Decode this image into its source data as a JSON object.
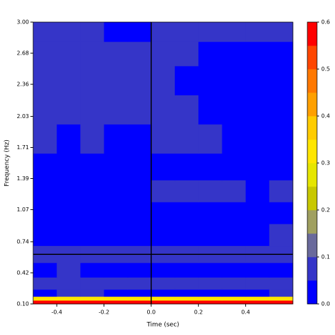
{
  "chart_data": {
    "type": "heatmap",
    "x_label": "Time (sec)",
    "y_label": "Frequency (Hz)",
    "xlim": [
      -0.5,
      0.6
    ],
    "ylim": [
      0.1,
      3.0
    ],
    "xticks": [
      -0.4,
      -0.2,
      {
        "value": 0,
        "label": "0.0"
      },
      0.2,
      0.4
    ],
    "yticks": [
      {
        "value": 0.1,
        "label": "0.10"
      },
      0.42,
      0.74,
      1.07,
      1.39,
      1.71,
      2.03,
      2.36,
      2.68,
      {
        "value": 3,
        "label": "3.00"
      }
    ],
    "x": [
      -0.45,
      -0.35,
      -0.25,
      -0.15,
      -0.05,
      0.05,
      0.15,
      0.25,
      0.35,
      0.45,
      0.55
    ],
    "y": [
      0.12,
      0.155,
      0.2,
      0.3,
      0.45,
      0.6,
      0.8,
      1.05,
      1.25,
      1.5,
      1.8,
      2.1,
      2.4,
      2.7,
      2.9
    ],
    "z": [
      [
        0.57,
        0.57,
        0.57,
        0.57,
        0.57,
        0.57,
        0.57,
        0.57,
        0.57,
        0.57,
        0.57
      ],
      [
        0.32,
        0.32,
        0.32,
        0.32,
        0.32,
        0.32,
        0.32,
        0.32,
        0.32,
        0.32,
        0.32
      ],
      [
        0.03,
        0.07,
        0.07,
        0.03,
        0.03,
        0.03,
        0.03,
        0.03,
        0.03,
        0.03,
        0.07
      ],
      [
        0.07,
        0.07,
        0.07,
        0.07,
        0.07,
        0.07,
        0.07,
        0.07,
        0.07,
        0.07,
        0.07
      ],
      [
        0.03,
        0.07,
        0.03,
        0.03,
        0.03,
        0.03,
        0.03,
        0.03,
        0.03,
        0.03,
        0.03
      ],
      [
        0.07,
        0.07,
        0.07,
        0.07,
        0.07,
        0.07,
        0.07,
        0.07,
        0.07,
        0.07,
        0.07
      ],
      [
        0.03,
        0.03,
        0.03,
        0.03,
        0.03,
        0.03,
        0.03,
        0.03,
        0.03,
        0.03,
        0.07
      ],
      [
        0.03,
        0.03,
        0.03,
        0.03,
        0.03,
        0.03,
        0.03,
        0.03,
        0.03,
        0.03,
        0.03
      ],
      [
        0.03,
        0.03,
        0.03,
        0.03,
        0.03,
        0.07,
        0.07,
        0.07,
        0.07,
        0.03,
        0.07
      ],
      [
        0.03,
        0.03,
        0.03,
        0.03,
        0.03,
        0.03,
        0.03,
        0.03,
        0.03,
        0.03,
        0.03
      ],
      [
        0.07,
        0.03,
        0.07,
        0.03,
        0.03,
        0.07,
        0.07,
        0.07,
        0.03,
        0.03,
        0.03
      ],
      [
        0.07,
        0.07,
        0.07,
        0.07,
        0.07,
        0.07,
        0.07,
        0.03,
        0.03,
        0.03,
        0.03
      ],
      [
        0.07,
        0.07,
        0.07,
        0.07,
        0.07,
        0.07,
        0.03,
        0.03,
        0.03,
        0.03,
        0.03
      ],
      [
        0.07,
        0.07,
        0.07,
        0.07,
        0.07,
        0.07,
        0.07,
        0.03,
        0.03,
        0.03,
        0.03
      ],
      [
        0.07,
        0.07,
        0.07,
        0.03,
        0.03,
        0.07,
        0.07,
        0.07,
        0.07,
        0.07,
        0.07
      ]
    ],
    "vlines": [
      0
    ],
    "hlines": [
      0.61
    ],
    "colorbar": {
      "levels": [
        0,
        0.05,
        0.1,
        0.15,
        0.2,
        0.25,
        0.3,
        0.35,
        0.4,
        0.45,
        0.5,
        0.55,
        0.6
      ],
      "colors": [
        "#0000ff",
        "#3535c8",
        "#6a6a9c",
        "#a0a060",
        "#c8c800",
        "#e6e600",
        "#ffe600",
        "#ffcc00",
        "#ffa000",
        "#ff7800",
        "#ff4600",
        "#ff0000"
      ],
      "ticks": [
        {
          "value": 0,
          "label": "0.0"
        },
        0.1,
        0.2,
        0.3,
        0.4,
        0.5,
        0.6
      ]
    }
  }
}
